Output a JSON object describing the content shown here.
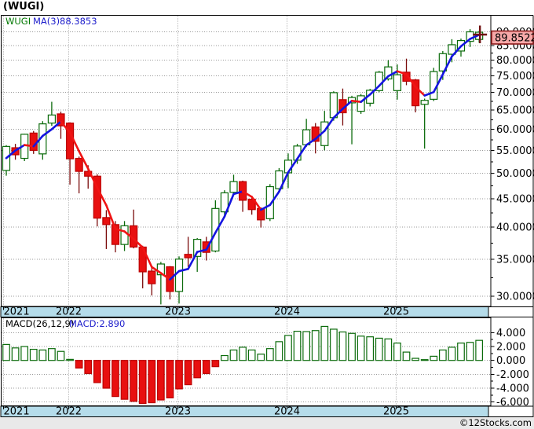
{
  "title": "(WUGI)",
  "copyright": "©12Stocks.com",
  "legend": {
    "symbol": "WUGI",
    "ma_label": "MA(3)",
    "ma_value": "88.3853"
  },
  "macd_legend": {
    "label": "MACD(26,12,9)",
    "value": "MACD:2.890"
  },
  "last_price_label": "89.8522",
  "x_axis": {
    "years": [
      "2021",
      "2022",
      "2023",
      "2024",
      "2025"
    ]
  },
  "price_axis": {
    "labels": [
      "90.0000",
      "85.0000",
      "80.0000",
      "75.0000",
      "70.0000",
      "65.0000",
      "60.0000",
      "55.0000",
      "50.0000",
      "45.0000",
      "40.0000",
      "35.0000",
      "30.0000"
    ],
    "values": [
      90,
      85,
      80,
      75,
      70,
      65,
      60,
      55,
      50,
      45,
      40,
      35,
      30
    ]
  },
  "macd_axis": {
    "labels": [
      "4.000",
      "2.000",
      "0.000",
      "-2.000",
      "-4.000",
      "-6.000"
    ],
    "values": [
      4,
      2,
      0,
      -2,
      -4,
      -6
    ]
  },
  "colors": {
    "up": "#0b6b0b",
    "up_fill": "#ffffff",
    "down_fill": "#e81010",
    "down_stroke": "#bb0000",
    "down_wick": "#7a0a0a",
    "ma_up": "#1414e0",
    "ma_down": "#f01414",
    "band": "#b5dcea",
    "grid": "#999999",
    "border": "#000000",
    "label_box_fill": "#f6a8a8",
    "label_box_stroke": "#8b1a1a",
    "marker": "#701010",
    "legend_symbol": "#007700",
    "legend_value": "#2020cc",
    "macd_label_color": "#000000",
    "strip": "#e9e9e9"
  },
  "chart_data": {
    "type": "candlestick",
    "title": "(WUGI)",
    "symbol": "WUGI",
    "price_scale": "log",
    "price_ylim": [
      29,
      92
    ],
    "ma_period": 3,
    "ma_last": 88.3853,
    "last_close": 89.8522,
    "grid": true,
    "months": [
      "2021-06",
      "2021-07",
      "2021-08",
      "2021-09",
      "2021-10",
      "2021-11",
      "2021-12",
      "2022-01",
      "2022-02",
      "2022-03",
      "2022-04",
      "2022-05",
      "2022-06",
      "2022-07",
      "2022-08",
      "2022-09",
      "2022-10",
      "2022-11",
      "2022-12",
      "2023-01",
      "2023-02",
      "2023-03",
      "2023-04",
      "2023-05",
      "2023-06",
      "2023-07",
      "2023-08",
      "2023-09",
      "2023-10",
      "2023-11",
      "2023-12",
      "2024-01",
      "2024-02",
      "2024-03",
      "2024-04",
      "2024-05",
      "2024-06",
      "2024-07",
      "2024-08",
      "2024-09",
      "2024-10",
      "2024-11",
      "2024-12",
      "2025-01",
      "2025-02",
      "2025-03",
      "2025-04",
      "2025-05",
      "2025-06",
      "2025-07",
      "2025-08",
      "2025-09",
      "2025-10"
    ],
    "ohlc": [
      [
        50.6,
        56.2,
        49.5,
        55.9
      ],
      [
        55.6,
        56.5,
        52.9,
        54.0
      ],
      [
        53.2,
        58.9,
        52.6,
        58.8
      ],
      [
        59.1,
        59.6,
        54.2,
        55.0
      ],
      [
        54.2,
        62.1,
        52.9,
        61.4
      ],
      [
        61.6,
        67.3,
        60.9,
        63.7
      ],
      [
        64.0,
        64.6,
        57.7,
        60.9
      ],
      [
        61.6,
        61.8,
        47.7,
        53.1
      ],
      [
        53.2,
        53.6,
        46.0,
        50.4
      ],
      [
        50.4,
        51.7,
        46.9,
        49.4
      ],
      [
        49.4,
        49.8,
        40.1,
        41.5
      ],
      [
        41.6,
        42.9,
        36.5,
        40.4
      ],
      [
        40.4,
        41.0,
        36.0,
        37.2
      ],
      [
        37.2,
        41.0,
        36.2,
        40.2
      ],
      [
        40.2,
        43.0,
        36.6,
        36.8
      ],
      [
        36.8,
        37.0,
        31.0,
        33.2
      ],
      [
        33.3,
        33.8,
        30.1,
        31.6
      ],
      [
        32.8,
        34.6,
        29.0,
        34.3
      ],
      [
        33.9,
        34.0,
        29.6,
        30.6
      ],
      [
        30.6,
        35.4,
        29.1,
        35.0
      ],
      [
        35.7,
        38.4,
        33.9,
        35.2
      ],
      [
        35.4,
        38.2,
        33.2,
        38.0
      ],
      [
        37.6,
        38.4,
        34.8,
        36.0
      ],
      [
        36.2,
        44.7,
        36.0,
        43.2
      ],
      [
        42.6,
        46.6,
        42.0,
        46.1
      ],
      [
        46.2,
        49.7,
        45.7,
        48.3
      ],
      [
        48.3,
        48.5,
        42.6,
        44.7
      ],
      [
        44.9,
        45.1,
        42.1,
        43.0
      ],
      [
        43.2,
        43.4,
        39.9,
        41.2
      ],
      [
        41.4,
        47.8,
        41.0,
        47.3
      ],
      [
        46.9,
        51.1,
        46.5,
        50.5
      ],
      [
        50.1,
        54.3,
        47.0,
        52.8
      ],
      [
        52.8,
        56.5,
        52.0,
        56.0
      ],
      [
        56.3,
        62.7,
        55.8,
        59.9
      ],
      [
        60.6,
        61.6,
        54.3,
        57.1
      ],
      [
        56.1,
        64.8,
        55.0,
        61.9
      ],
      [
        63.0,
        70.3,
        62.2,
        69.9
      ],
      [
        67.9,
        71.1,
        61.0,
        64.3
      ],
      [
        67.0,
        69.0,
        56.4,
        68.5
      ],
      [
        64.7,
        69.5,
        64.0,
        69.0
      ],
      [
        66.9,
        71.0,
        66.0,
        70.6
      ],
      [
        70.5,
        76.5,
        70.0,
        76.1
      ],
      [
        74.0,
        80.0,
        73.5,
        77.8
      ],
      [
        70.5,
        78.6,
        67.9,
        75.3
      ],
      [
        76.1,
        80.5,
        72.1,
        73.3
      ],
      [
        73.7,
        74.0,
        64.4,
        66.2
      ],
      [
        66.6,
        68.2,
        55.4,
        67.7
      ],
      [
        68.0,
        77.5,
        67.5,
        76.3
      ],
      [
        76.5,
        83.1,
        73.7,
        82.2
      ],
      [
        82.0,
        87.3,
        79.3,
        85.3
      ],
      [
        83.1,
        87.5,
        81.2,
        86.8
      ],
      [
        86.5,
        91.0,
        84.5,
        90.0
      ],
      [
        87.2,
        90.4,
        86.0,
        89.8522
      ]
    ],
    "indicator": {
      "type": "MACD",
      "params": [
        26,
        12,
        9
      ],
      "last": 2.89,
      "ylim": [
        -7,
        6.2
      ],
      "histogram": [
        2.3,
        1.8,
        2.0,
        1.6,
        1.5,
        1.7,
        1.3,
        0.15,
        -1.1,
        -1.9,
        -3.2,
        -4.0,
        -5.2,
        -5.6,
        -5.9,
        -6.2,
        -6.1,
        -5.7,
        -5.4,
        -4.1,
        -3.5,
        -2.5,
        -1.9,
        -0.9,
        0.7,
        1.5,
        1.9,
        1.5,
        0.9,
        1.7,
        2.7,
        3.6,
        4.2,
        4.15,
        4.3,
        4.9,
        4.5,
        4.1,
        3.9,
        3.5,
        3.4,
        3.2,
        3.1,
        2.5,
        1.2,
        0.3,
        0.1,
        0.6,
        1.5,
        1.9,
        2.5,
        2.6,
        2.89
      ]
    }
  }
}
